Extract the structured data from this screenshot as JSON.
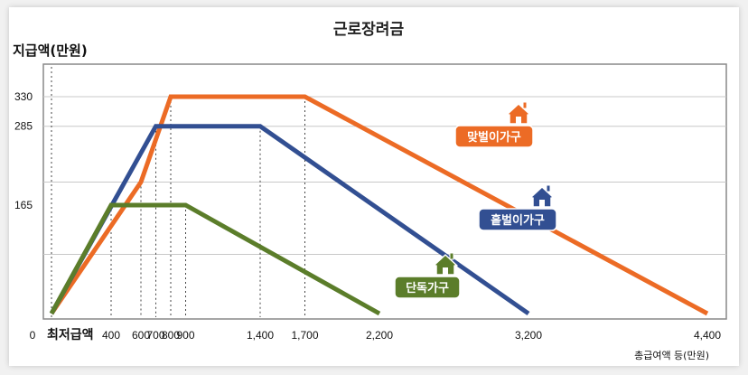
{
  "chart_data": {
    "type": "line",
    "title": "근로장려금",
    "ylabel": "지급액(만원)",
    "xlabel": "총급여액 등(만원)",
    "x_origin_label": "0",
    "min_wage_label": "최저급액",
    "xlim": [
      0,
      4400
    ],
    "ylim": [
      0,
      330
    ],
    "y_ticks": [
      165,
      285,
      330
    ],
    "x_ticks": [
      400,
      600,
      700,
      800,
      900,
      1400,
      1700,
      2200,
      3200,
      4400
    ],
    "x_tick_labels": [
      "400",
      "600",
      "700",
      "800",
      "900",
      "1,400",
      "1,700",
      "2,200",
      "3,200",
      "4,400"
    ],
    "grid": "horizontal",
    "series": [
      {
        "name": "맞벌이가구",
        "color": "#ec6b25",
        "icon": "house-icon",
        "points": [
          [
            0,
            0
          ],
          [
            600,
            200
          ],
          [
            800,
            330
          ],
          [
            1700,
            330
          ],
          [
            4400,
            0
          ]
        ]
      },
      {
        "name": "홑벌이가구",
        "color": "#324f92",
        "icon": "house-icon",
        "points": [
          [
            0,
            0
          ],
          [
            700,
            285
          ],
          [
            1400,
            285
          ],
          [
            3200,
            0
          ]
        ]
      },
      {
        "name": "단독가구",
        "color": "#5b7d2a",
        "icon": "house-icon",
        "points": [
          [
            0,
            0
          ],
          [
            400,
            165
          ],
          [
            900,
            165
          ],
          [
            2200,
            0
          ]
        ]
      }
    ]
  }
}
